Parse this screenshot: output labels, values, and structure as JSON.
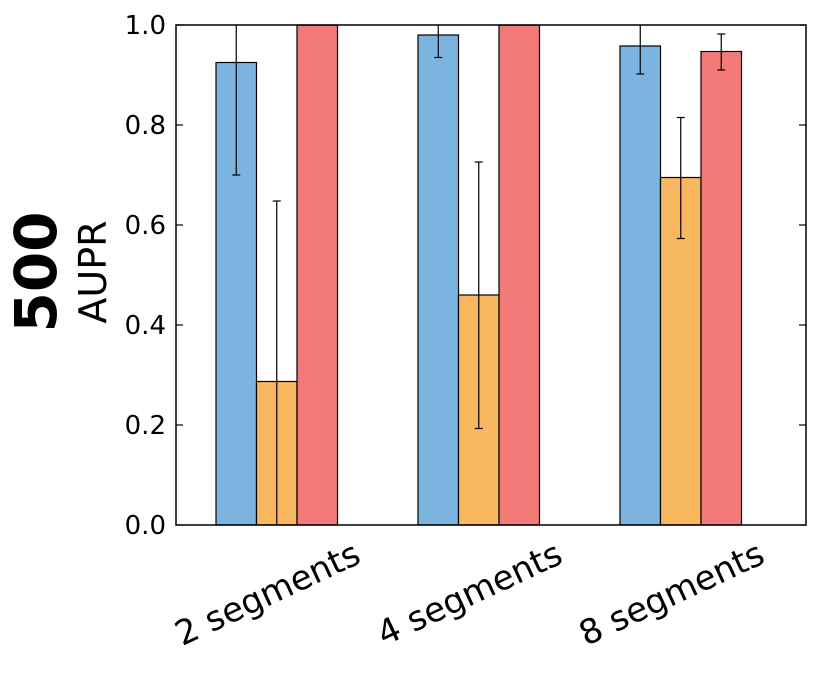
{
  "chart_data": {
    "type": "bar",
    "title": "",
    "panel_label": "500",
    "ylabel": "AUPR",
    "xlabel": "",
    "ylim": [
      0.0,
      1.0
    ],
    "yticks": [
      "0.0",
      "0.2",
      "0.4",
      "0.6",
      "0.8",
      "1.0"
    ],
    "grid": false,
    "categories": [
      "2 segments",
      "4 segments",
      "8 segments"
    ],
    "series": [
      {
        "name": "series-blue",
        "color": "#7cb4e0",
        "values": [
          0.925,
          0.98,
          0.958
        ],
        "error_low": [
          0.7,
          0.935,
          0.902
        ],
        "error_high": [
          1.0,
          1.0,
          1.0
        ]
      },
      {
        "name": "series-orange",
        "color": "#f9b760",
        "values": [
          0.287,
          0.46,
          0.695
        ],
        "error_low": [
          0.0,
          0.193,
          0.573
        ],
        "error_high": [
          0.648,
          0.726,
          0.815
        ]
      },
      {
        "name": "series-red",
        "color": "#f27b77",
        "values": [
          1.0,
          1.0,
          0.947
        ],
        "error_low": [
          1.0,
          1.0,
          0.91
        ],
        "error_high": [
          1.0,
          1.0,
          0.982
        ]
      }
    ]
  }
}
